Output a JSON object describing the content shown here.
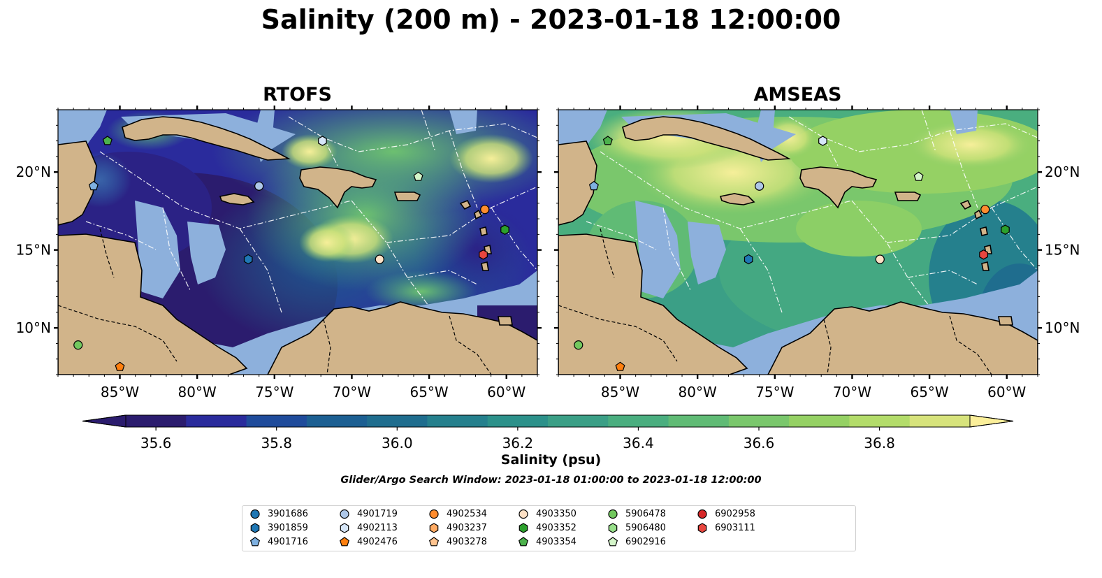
{
  "title": "Salinity (200 m) - 2023-01-18 12:00:00",
  "panels": [
    {
      "name": "RTOFS"
    },
    {
      "name": "AMSEAS"
    }
  ],
  "axes": {
    "lon_labels": [
      "85°W",
      "80°W",
      "75°W",
      "70°W",
      "65°W",
      "60°W"
    ],
    "lat_labels": [
      "20°N",
      "15°N",
      "10°N"
    ],
    "lon_range": [
      -89,
      -58
    ],
    "lat_range": [
      7,
      24
    ]
  },
  "colorbar": {
    "title": "Salinity (psu)",
    "ticks": [
      "35.6",
      "35.8",
      "36.0",
      "36.2",
      "36.4",
      "36.6",
      "36.8"
    ],
    "range": [
      35.55,
      36.95
    ],
    "colors": [
      "#2b1c6e",
      "#2a2b9c",
      "#1f4b9b",
      "#1c5f92",
      "#1f6d8e",
      "#25808d",
      "#2c918a",
      "#3b9f86",
      "#4aae7f",
      "#60bb75",
      "#7ac76c",
      "#95d164",
      "#b3dc6a",
      "#d7e37c"
    ],
    "extend_low": "#2b1c6e",
    "extend_high": "#fbef9a"
  },
  "search_window": "Glider/Argo Search Window: 2023-01-18 01:00:00 to 2023-01-18 12:00:00",
  "legend": [
    {
      "id": "3901686",
      "marker": "circle",
      "color": "#1f77b4"
    },
    {
      "id": "3901859",
      "marker": "hexagon",
      "color": "#1f77b4"
    },
    {
      "id": "4901716",
      "marker": "pentagon",
      "color": "#7eb0e0"
    },
    {
      "id": "4901719",
      "marker": "circle",
      "color": "#aec7e8"
    },
    {
      "id": "4902113",
      "marker": "hexagon",
      "color": "#d6e6f8"
    },
    {
      "id": "4902476",
      "marker": "pentagon",
      "color": "#ff7f0e"
    },
    {
      "id": "4902534",
      "marker": "circle",
      "color": "#ff8c2e"
    },
    {
      "id": "4903237",
      "marker": "hexagon",
      "color": "#ffab63"
    },
    {
      "id": "4903278",
      "marker": "pentagon",
      "color": "#ffc48f"
    },
    {
      "id": "4903350",
      "marker": "circle",
      "color": "#fde0c5"
    },
    {
      "id": "4903352",
      "marker": "hexagon",
      "color": "#2ca02c"
    },
    {
      "id": "4903354",
      "marker": "pentagon",
      "color": "#4cb24c"
    },
    {
      "id": "5906478",
      "marker": "circle",
      "color": "#72c85e"
    },
    {
      "id": "5906480",
      "marker": "hexagon",
      "color": "#98df8a"
    },
    {
      "id": "6902916",
      "marker": "pentagon",
      "color": "#d4f5c9"
    },
    {
      "id": "6902958",
      "marker": "circle",
      "color": "#d62728"
    },
    {
      "id": "6903111",
      "marker": "hexagon",
      "color": "#e8463f"
    }
  ],
  "floats_on_map": [
    {
      "id": "4903354",
      "lon": -85.8,
      "lat": 22.0,
      "marker": "pentagon",
      "color": "#4cb24c"
    },
    {
      "id": "4901716",
      "lon": -86.7,
      "lat": 19.1,
      "marker": "pentagon",
      "color": "#7eb0e0"
    },
    {
      "id": "4901719",
      "lon": -76.0,
      "lat": 19.1,
      "marker": "circle",
      "color": "#aec7e8"
    },
    {
      "id": "4902113",
      "lon": -71.9,
      "lat": 22.0,
      "marker": "hexagon",
      "color": "#d6e6f8"
    },
    {
      "id": "6902916",
      "lon": -65.7,
      "lat": 19.7,
      "marker": "pentagon",
      "color": "#d4f5c9"
    },
    {
      "id": "4902534",
      "lon": -61.4,
      "lat": 17.6,
      "marker": "circle",
      "color": "#ff8c2e"
    },
    {
      "id": "4903352",
      "lon": -60.1,
      "lat": 16.3,
      "marker": "hexagon",
      "color": "#2ca02c"
    },
    {
      "id": "6903111",
      "lon": -61.5,
      "lat": 14.7,
      "marker": "hexagon",
      "color": "#e8463f"
    },
    {
      "id": "4903350",
      "lon": -68.2,
      "lat": 14.4,
      "marker": "circle",
      "color": "#fde0c5"
    },
    {
      "id": "3901859",
      "lon": -76.7,
      "lat": 14.4,
      "marker": "hexagon",
      "color": "#1f77b4"
    },
    {
      "id": "5906478",
      "lon": -87.7,
      "lat": 8.9,
      "marker": "circle",
      "color": "#72c85e"
    },
    {
      "id": "4902476",
      "lon": -85.0,
      "lat": 7.5,
      "marker": "pentagon",
      "color": "#ff7f0e"
    }
  ]
}
